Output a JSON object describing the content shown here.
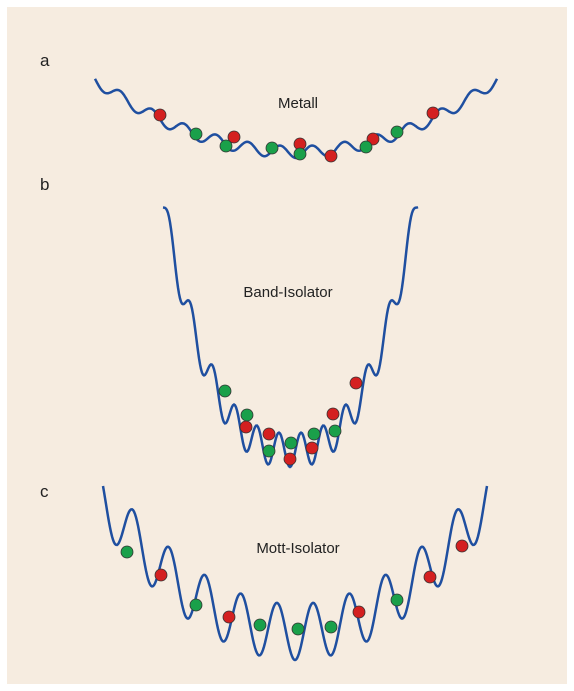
{
  "panels": [
    {
      "letter": "a",
      "title": "Metall"
    },
    {
      "letter": "b",
      "title": "Band-Isolator"
    },
    {
      "letter": "c",
      "title": "Mott-Isolator"
    }
  ]
}
